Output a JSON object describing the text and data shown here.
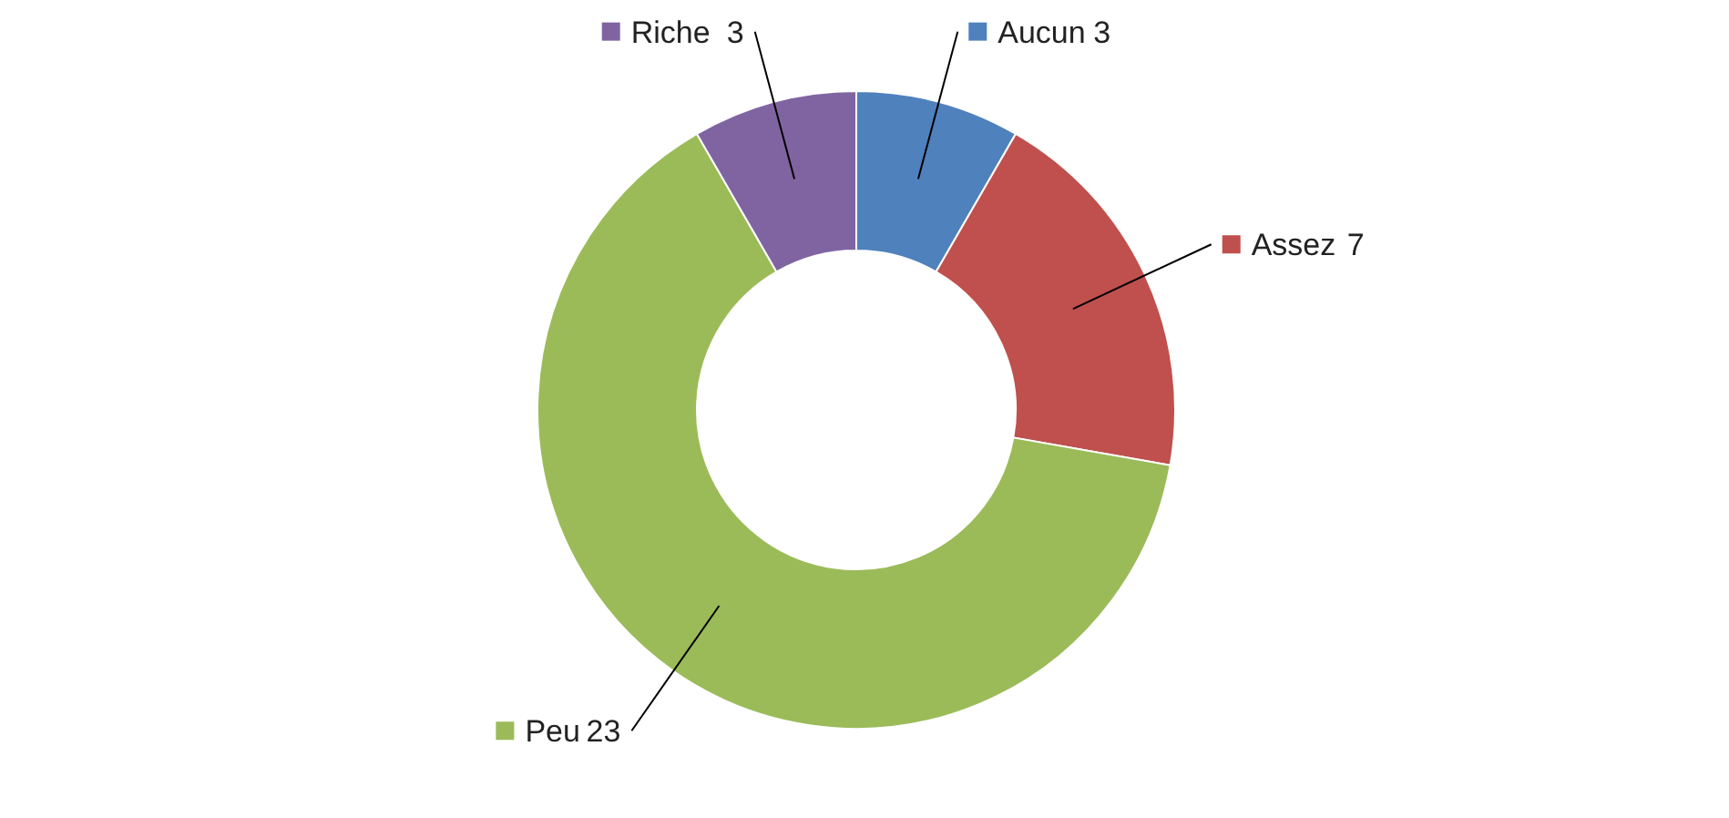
{
  "chart_data": {
    "type": "donut",
    "categories": [
      "Aucun",
      "Assez",
      "Peu",
      "Riche"
    ],
    "values": [
      3,
      7,
      23,
      3
    ],
    "colors": [
      "#4f81bd",
      "#c0504d",
      "#9bbb59",
      "#8064a2"
    ],
    "data_labels": true,
    "legend": "top"
  }
}
